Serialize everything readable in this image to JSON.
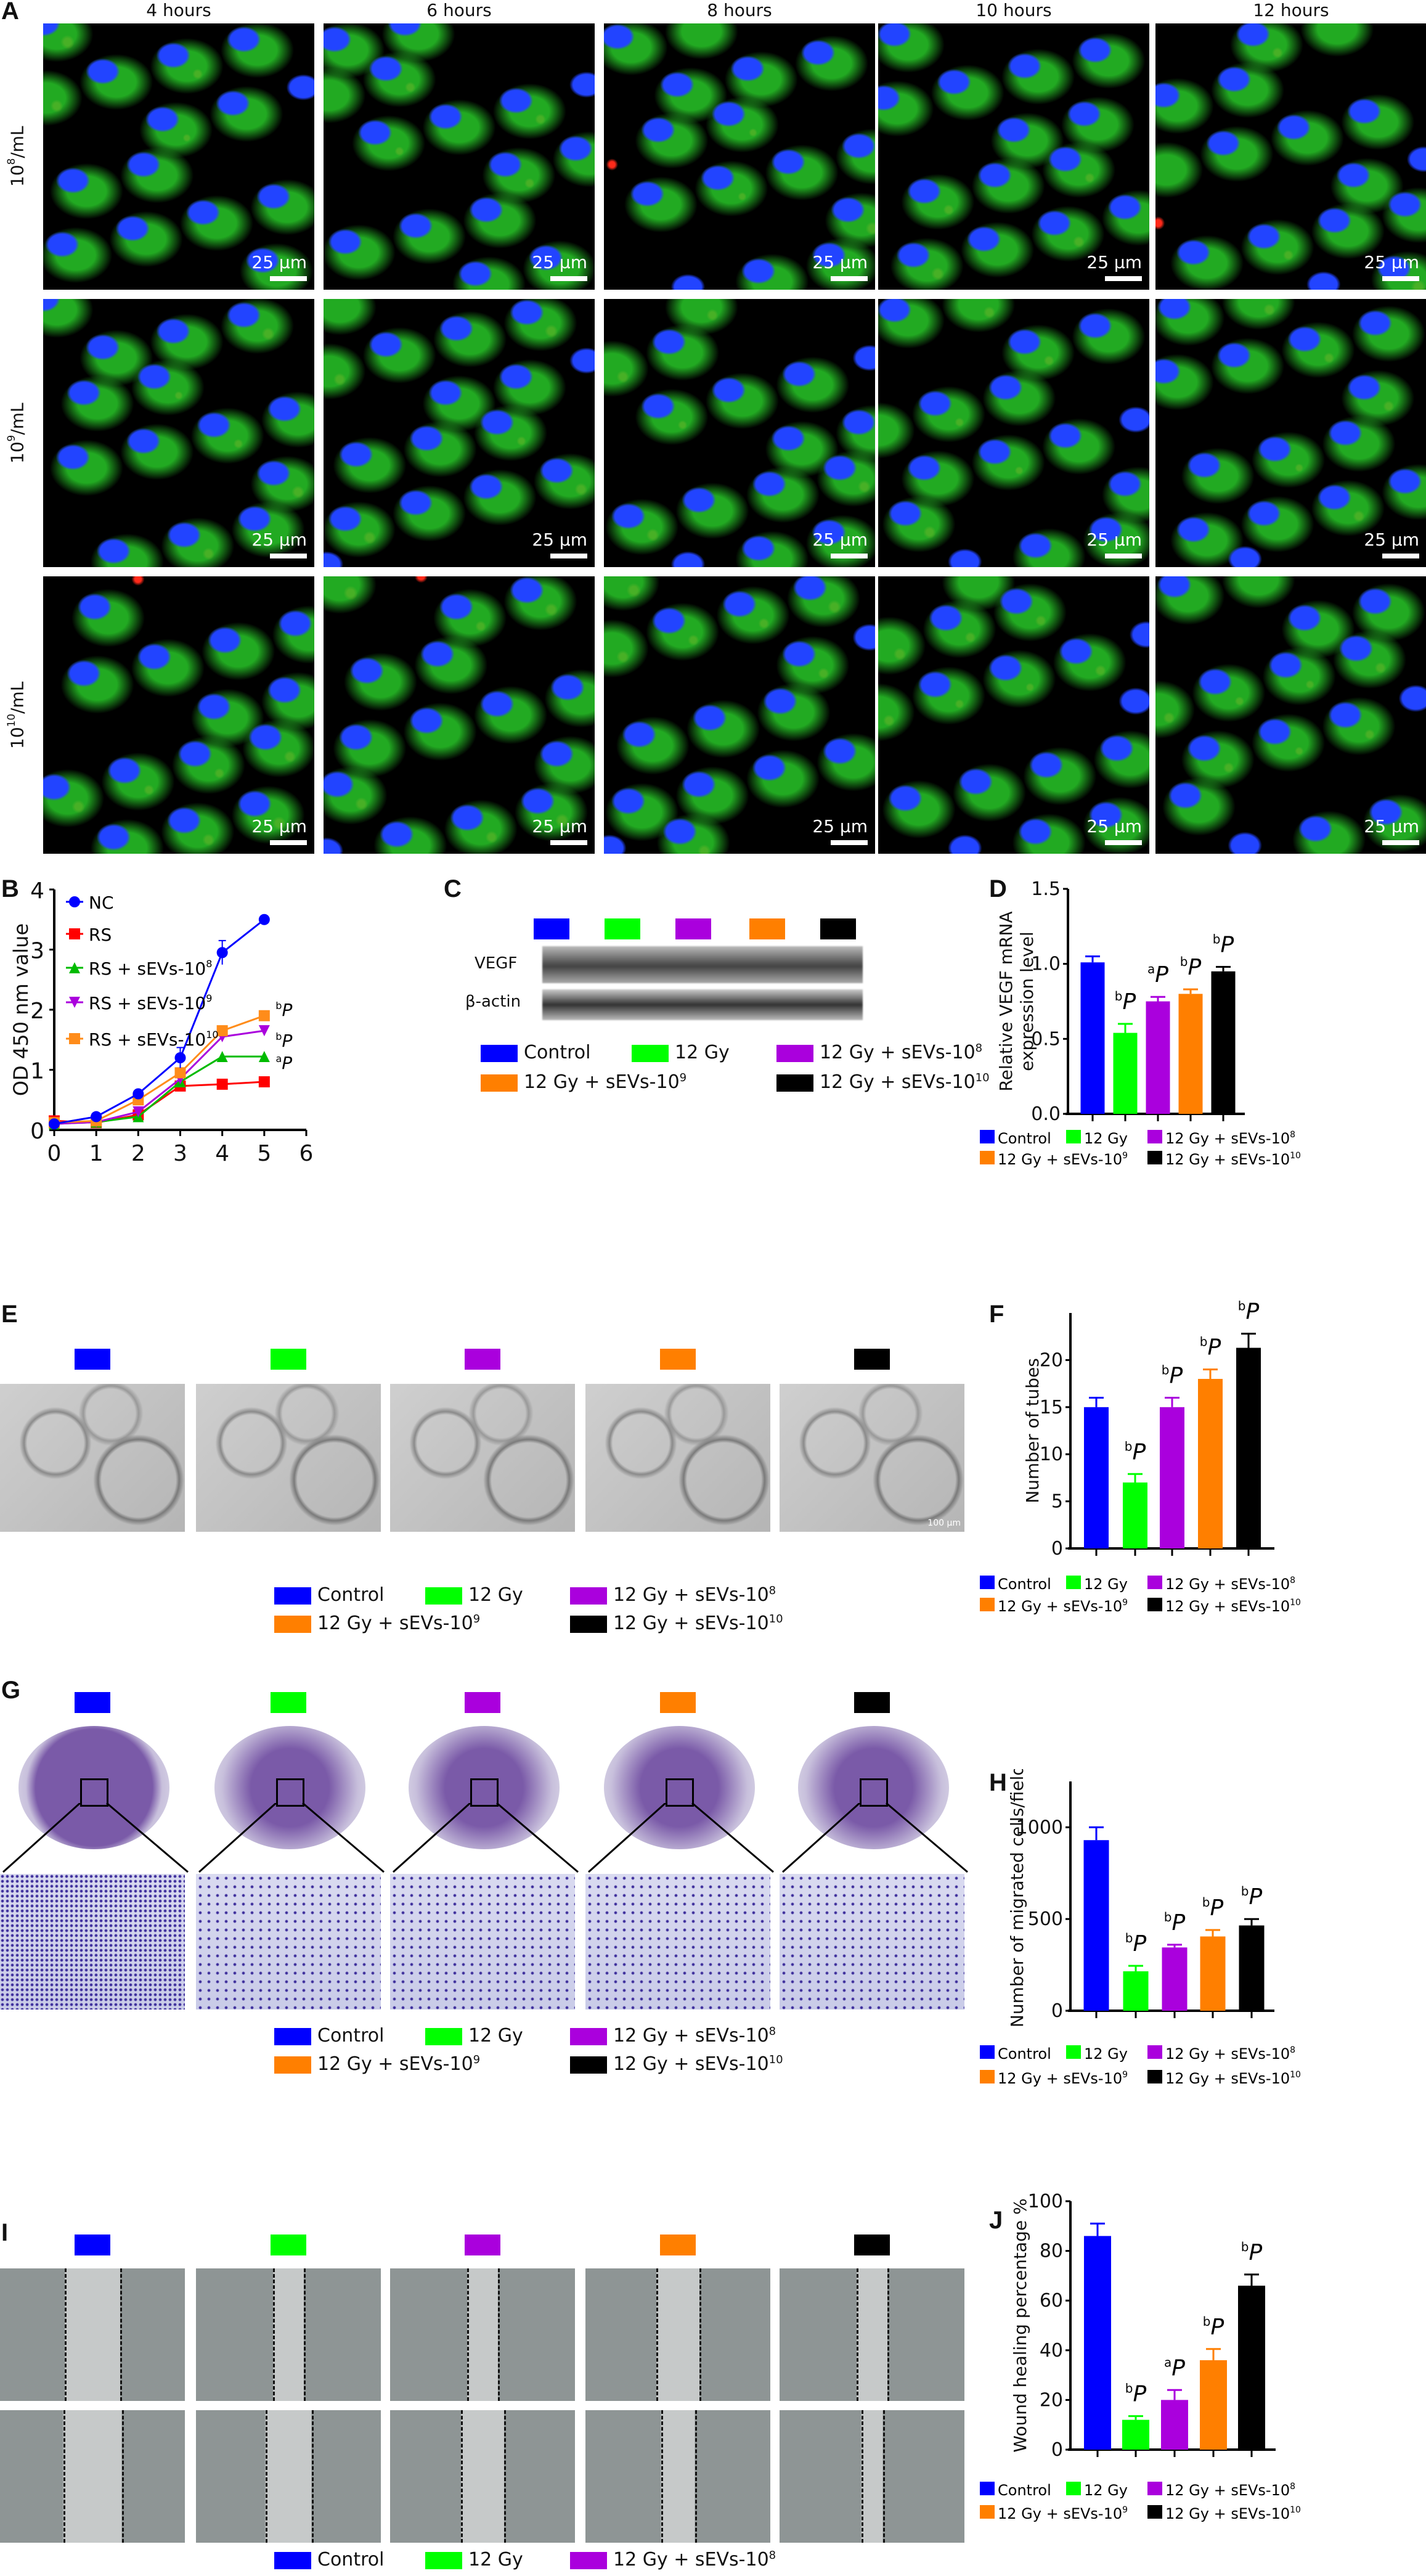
{
  "groups": [
    {
      "label": "Control",
      "sup": "",
      "color": "#0000ff"
    },
    {
      "label": "12 Gy",
      "sup": "",
      "color": "#00ff00"
    },
    {
      "label": "12 Gy + sEVs-10",
      "sup": "8",
      "color": "#aa00dd"
    },
    {
      "label": "12 Gy + sEVs-10",
      "sup": "9",
      "color": "#ff7f00"
    },
    {
      "label": "12 Gy + sEVs-10",
      "sup": "10",
      "color": "#000000"
    }
  ],
  "panelA": {
    "label": "A",
    "columns": [
      "4 hours",
      "6 hours",
      "8 hours",
      "10 hours",
      "12 hours"
    ],
    "rows": [
      {
        "base": "10",
        "sup": "8",
        "unit": "/mL"
      },
      {
        "base": "10",
        "sup": "9",
        "unit": "/mL"
      },
      {
        "base": "10",
        "sup": "10",
        "unit": "/mL"
      }
    ],
    "scale_bar": "25 μm"
  },
  "panelC": {
    "label": "C",
    "bands": [
      "VEGF",
      "β-actin"
    ]
  },
  "panelE": {
    "label": "E",
    "scale_bar": "100 μm"
  },
  "panelG": {
    "label": "G"
  },
  "panelI": {
    "label": "I"
  },
  "chart_data": [
    {
      "id": "B",
      "label": "B",
      "type": "line",
      "xlabel": "",
      "ylabel": "OD 450 nm value",
      "xlim": [
        0,
        6
      ],
      "ylim": [
        0,
        4
      ],
      "xticks": [
        0,
        1,
        2,
        3,
        4,
        5,
        6
      ],
      "yticks": [
        0,
        1,
        2,
        3,
        4
      ],
      "x": [
        0,
        1,
        2,
        3,
        4,
        5
      ],
      "legend": "top-left",
      "series": [
        {
          "name": "NC",
          "sup": "",
          "color": "#0000ff",
          "marker": "circle",
          "values": [
            0.1,
            0.22,
            0.6,
            1.2,
            2.95,
            3.5
          ],
          "annot": null
        },
        {
          "name": "RS",
          "sup": "",
          "color": "#ff0000",
          "marker": "square",
          "values": [
            0.15,
            0.12,
            0.25,
            0.73,
            0.76,
            0.8
          ],
          "annot": null
        },
        {
          "name": "RS + sEVs-10",
          "sup": "8",
          "color": "#00bb00",
          "marker": "triangle-up",
          "values": [
            0.1,
            0.13,
            0.22,
            0.8,
            1.22,
            1.22
          ],
          "annot": {
            "sup": "a",
            "text": "P"
          }
        },
        {
          "name": "RS + sEVs-10",
          "sup": "9",
          "color": "#aa00dd",
          "marker": "triangle-down",
          "values": [
            0.1,
            0.13,
            0.3,
            0.85,
            1.55,
            1.65
          ],
          "annot": {
            "sup": "b",
            "text": "P"
          }
        },
        {
          "name": "RS + sEVs-10",
          "sup": "10",
          "color": "#ff8c1a",
          "marker": "square",
          "values": [
            0.12,
            0.15,
            0.5,
            0.95,
            1.65,
            1.9
          ],
          "annot": {
            "sup": "b",
            "text": "P"
          }
        }
      ]
    },
    {
      "id": "D",
      "label": "D",
      "type": "bar",
      "ylabel": "Relative VEGF mRNA expression level",
      "ylim": [
        0,
        1.5
      ],
      "yticks": [
        "0.0",
        "0.5",
        "1.0",
        "1.5"
      ],
      "values": [
        1.01,
        0.54,
        0.75,
        0.8,
        0.95
      ],
      "errors": [
        0.04,
        0.06,
        0.03,
        0.03,
        0.03
      ],
      "annots": [
        null,
        {
          "sup": "b",
          "text": "P"
        },
        {
          "sup": "a",
          "text": "P"
        },
        {
          "sup": "b",
          "text": "P"
        },
        {
          "sup": "b",
          "text": "P"
        }
      ]
    },
    {
      "id": "F",
      "label": "F",
      "type": "bar",
      "ylabel": "Number of tubes",
      "ylim": [
        0,
        25
      ],
      "yticks": [
        "0",
        "5",
        "10",
        "15",
        "20"
      ],
      "values": [
        15,
        7,
        15,
        18,
        21.3
      ],
      "errors": [
        1,
        0.9,
        1,
        1,
        1.5
      ],
      "annots": [
        null,
        {
          "sup": "b",
          "text": "P"
        },
        {
          "sup": "b",
          "text": "P"
        },
        {
          "sup": "b",
          "text": "P"
        },
        {
          "sup": "b",
          "text": "P"
        }
      ]
    },
    {
      "id": "H",
      "label": "H",
      "type": "bar",
      "ylabel": "Number of migrated cells/field",
      "ylim": [
        0,
        1250
      ],
      "yticks": [
        "0",
        "500",
        "1000"
      ],
      "values": [
        930,
        215,
        345,
        405,
        465
      ],
      "errors": [
        70,
        30,
        15,
        35,
        35
      ],
      "annots": [
        null,
        {
          "sup": "b",
          "text": "P"
        },
        {
          "sup": "b",
          "text": "P"
        },
        {
          "sup": "b",
          "text": "P"
        },
        {
          "sup": "b",
          "text": "P"
        }
      ]
    },
    {
      "id": "J",
      "label": "J",
      "type": "bar",
      "ylabel": "Wound healing percentage %",
      "ylim": [
        0,
        100
      ],
      "yticks": [
        "0",
        "20",
        "40",
        "60",
        "80",
        "100"
      ],
      "values": [
        86,
        12,
        20,
        36,
        66
      ],
      "errors": [
        5,
        1.5,
        4,
        4.5,
        4.5
      ],
      "annots": [
        null,
        {
          "sup": "b",
          "text": "P"
        },
        {
          "sup": "a",
          "text": "P"
        },
        {
          "sup": "b",
          "text": "P"
        },
        {
          "sup": "b",
          "text": "P"
        }
      ]
    }
  ]
}
